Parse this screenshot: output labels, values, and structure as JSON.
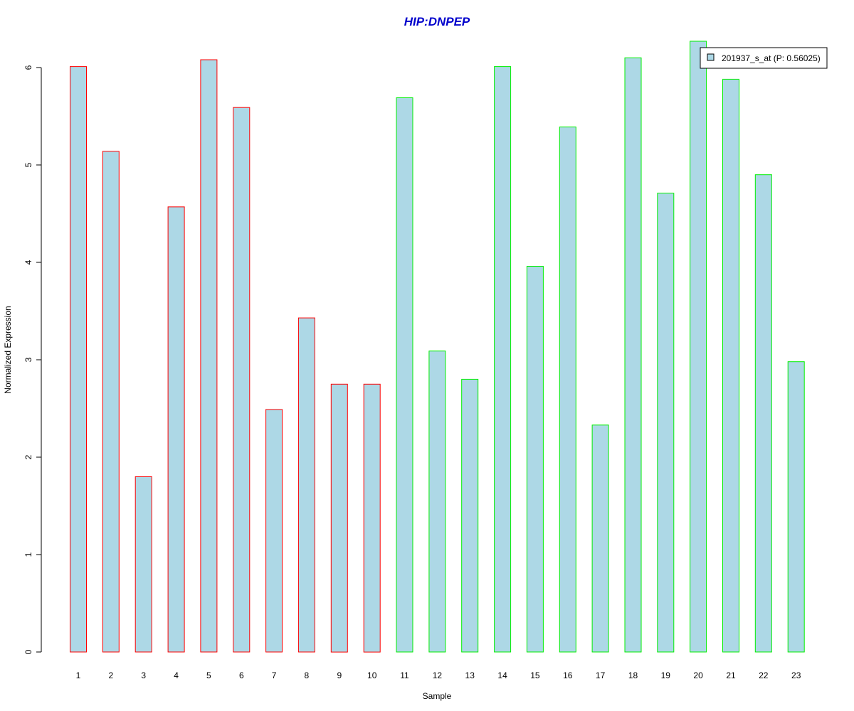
{
  "chart_data": {
    "type": "bar",
    "title": "HIP:DNPEP",
    "title_color": "#0000CC",
    "xlabel": "Sample",
    "ylabel": "Normalized Expression",
    "ylim": [
      0,
      6.27
    ],
    "yticks": [
      "0",
      "1",
      "2",
      "3",
      "4",
      "5",
      "6"
    ],
    "categories": [
      "1",
      "2",
      "3",
      "4",
      "5",
      "6",
      "7",
      "8",
      "9",
      "10",
      "11",
      "12",
      "13",
      "14",
      "15",
      "16",
      "17",
      "18",
      "19",
      "20",
      "21",
      "22",
      "23"
    ],
    "series": [
      {
        "name": "201937_s_at (P: 0.56025)",
        "fill": "#ADD8E6",
        "values": [
          6.01,
          5.14,
          1.8,
          4.57,
          6.08,
          5.59,
          2.49,
          3.43,
          2.75,
          2.75,
          5.69,
          3.09,
          2.8,
          6.01,
          3.96,
          5.39,
          2.33,
          6.1,
          4.71,
          6.27,
          5.88,
          4.9,
          2.98
        ]
      }
    ],
    "bar_border_colors": [
      "#FF0000",
      "#FF0000",
      "#FF0000",
      "#FF0000",
      "#FF0000",
      "#FF0000",
      "#FF0000",
      "#FF0000",
      "#FF0000",
      "#FF0000",
      "#00EE00",
      "#00EE00",
      "#00EE00",
      "#00EE00",
      "#00EE00",
      "#00EE00",
      "#00EE00",
      "#00EE00",
      "#00EE00",
      "#00EE00",
      "#00EE00",
      "#00EE00",
      "#00EE00"
    ],
    "legend": {
      "position": "top-right",
      "label": "201937_s_at (P: 0.56025)"
    },
    "grid": false
  }
}
